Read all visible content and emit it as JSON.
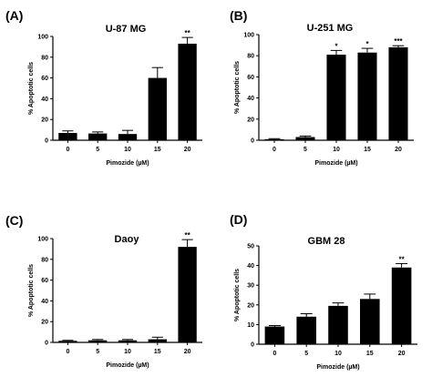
{
  "chart_data": [
    {
      "type": "bar",
      "panel_label": "(A)",
      "title": "U-87 MG",
      "xlabel": "Pimozide (µM)",
      "ylabel": "% Apoptotic cells",
      "categories": [
        "0",
        "5",
        "10",
        "15",
        "20"
      ],
      "values": [
        7,
        6.5,
        6,
        60,
        93
      ],
      "errors": [
        2,
        1.5,
        3.5,
        10,
        6
      ],
      "significance": [
        "",
        "",
        "",
        "",
        "**"
      ],
      "ylim": [
        0,
        100
      ],
      "yticks": [
        "0",
        "20",
        "40",
        "60",
        "80",
        "100"
      ],
      "bar_color": "#000000",
      "grid": false
    },
    {
      "type": "bar",
      "panel_label": "(B)",
      "title": "U-251 MG",
      "xlabel": "Pimozide (µM)",
      "ylabel": "% Apoptotic cells",
      "categories": [
        "0",
        "5",
        "10",
        "15",
        "20"
      ],
      "values": [
        1,
        3,
        81,
        83,
        88
      ],
      "errors": [
        0.5,
        1,
        4,
        4,
        1.5
      ],
      "significance": [
        "",
        "",
        "*",
        "*",
        "***"
      ],
      "ylim": [
        0,
        100
      ],
      "yticks": [
        "0",
        "20",
        "40",
        "60",
        "80",
        "100"
      ],
      "bar_color": "#000000",
      "grid": false
    },
    {
      "type": "bar",
      "panel_label": "(C)",
      "title": "Daoy",
      "xlabel": "Pimozide (µM)",
      "ylabel": "% Apoptotic cells",
      "categories": [
        "0",
        "5",
        "10",
        "15",
        "20"
      ],
      "values": [
        1.5,
        2,
        2,
        3,
        92
      ],
      "errors": [
        0.5,
        0.8,
        0.8,
        2,
        7
      ],
      "significance": [
        "",
        "",
        "",
        "",
        "**"
      ],
      "ylim": [
        0,
        100
      ],
      "yticks": [
        "0",
        "20",
        "40",
        "60",
        "80",
        "100"
      ],
      "bar_color": "#000000",
      "grid": false
    },
    {
      "type": "bar",
      "panel_label": "(D)",
      "title": "GBM 28",
      "xlabel": "Pimozide (µM)",
      "ylabel": "% Apoptotic cells",
      "categories": [
        "0",
        "5",
        "10",
        "15",
        "20"
      ],
      "values": [
        9,
        14,
        19.5,
        23,
        39
      ],
      "errors": [
        0.5,
        1.5,
        1.5,
        2.5,
        2
      ],
      "significance": [
        "",
        "",
        "",
        "",
        "**"
      ],
      "ylim": [
        0,
        50
      ],
      "yticks": [
        "0",
        "10",
        "20",
        "30",
        "40",
        "50"
      ],
      "bar_color": "#000000",
      "grid": false
    }
  ]
}
